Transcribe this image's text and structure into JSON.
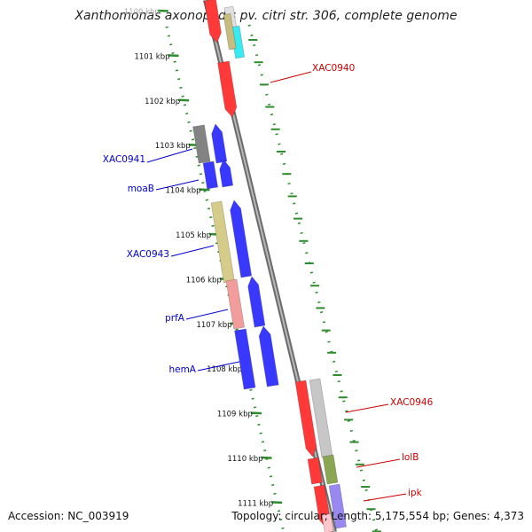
{
  "title": "Xanthomonas axonopodis pv. citri str. 306, complete genome",
  "footer": {
    "accession": "Accession: NC_003919",
    "summary": "Topology: circular; Length: 5,175,554 bp; Genes: 4,373"
  },
  "colors": {
    "backbone": "#909090",
    "ruler": "#2e8b2e",
    "label_forward": "#cc0000",
    "label_reverse": "#0000cc"
  },
  "ticks": [
    {
      "label": "1100 kbp",
      "kbp": 1100,
      "faded": true
    },
    {
      "label": "1101 kbp",
      "kbp": 1101
    },
    {
      "label": "1102 kbp",
      "kbp": 1102
    },
    {
      "label": "1103 kbp",
      "kbp": 1103
    },
    {
      "label": "1104 kbp",
      "kbp": 1104
    },
    {
      "label": "1105 kbp",
      "kbp": 1105
    },
    {
      "label": "1106 kbp",
      "kbp": 1106
    },
    {
      "label": "1107 kbp",
      "kbp": 1107
    },
    {
      "label": "1108 kbp",
      "kbp": 1108
    },
    {
      "label": "1109 kbp",
      "kbp": 1109
    },
    {
      "label": "1110 kbp",
      "kbp": 1110
    },
    {
      "label": "1111 kbp",
      "kbp": 1111
    }
  ],
  "genes": [
    {
      "name": "XAC0940",
      "strand": "forward",
      "color": "#ff0000",
      "labelled": true
    },
    {
      "name": "XAC0941",
      "strand": "reverse",
      "color": "#0000ff",
      "labelled": true
    },
    {
      "name": "moaB",
      "strand": "reverse",
      "color": "#0000ff",
      "labelled": true
    },
    {
      "name": "XAC0943",
      "strand": "reverse",
      "color": "#0000ff",
      "labelled": true
    },
    {
      "name": "prfA",
      "strand": "reverse",
      "color": "#0000ff",
      "labelled": true
    },
    {
      "name": "hemA",
      "strand": "reverse",
      "color": "#0000ff",
      "labelled": true
    },
    {
      "name": "XAC0946",
      "strand": "forward",
      "color": "#ff0000",
      "labelled": true
    },
    {
      "name": "lolB",
      "strand": "forward",
      "color": "#ff0000",
      "labelled": true
    },
    {
      "name": "ipk",
      "strand": "forward",
      "color": "#ff0000",
      "labelled": true
    }
  ]
}
